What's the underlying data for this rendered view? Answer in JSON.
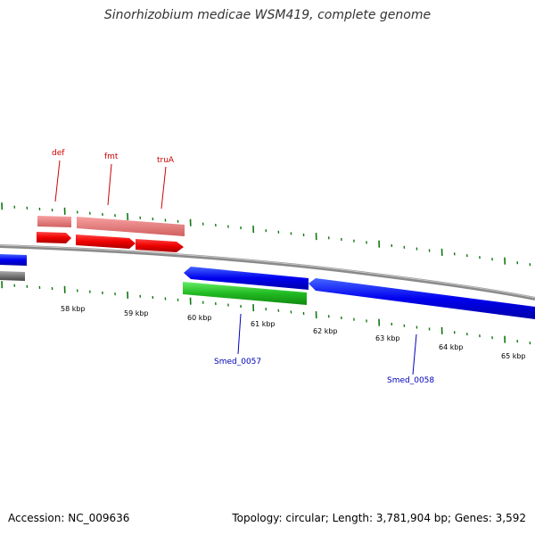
{
  "title": "Sinorhizobium medicae WSM419, complete genome",
  "footer": {
    "accession": "Accession: NC_009636",
    "summary": "Topology: circular; Length: 3,781,904 bp; Genes: 3,592"
  },
  "scale_labels": [
    "58 kbp",
    "59 kbp",
    "60 kbp",
    "61 kbp",
    "62 kbp",
    "63 kbp",
    "64 kbp",
    "65 kbp"
  ],
  "genes": {
    "forward": [
      {
        "name": "def"
      },
      {
        "name": "fmt"
      },
      {
        "name": "truA"
      }
    ],
    "reverse": [
      {
        "name": "Smed_0057"
      },
      {
        "name": "Smed_0058"
      }
    ]
  },
  "colors": {
    "forward_cds": "#ff0000",
    "forward_highlight": "#f08080",
    "reverse_cds": "#0000ee",
    "rna_gene": "#33cc33",
    "backbone": "#808080",
    "ticks": "#117711"
  }
}
